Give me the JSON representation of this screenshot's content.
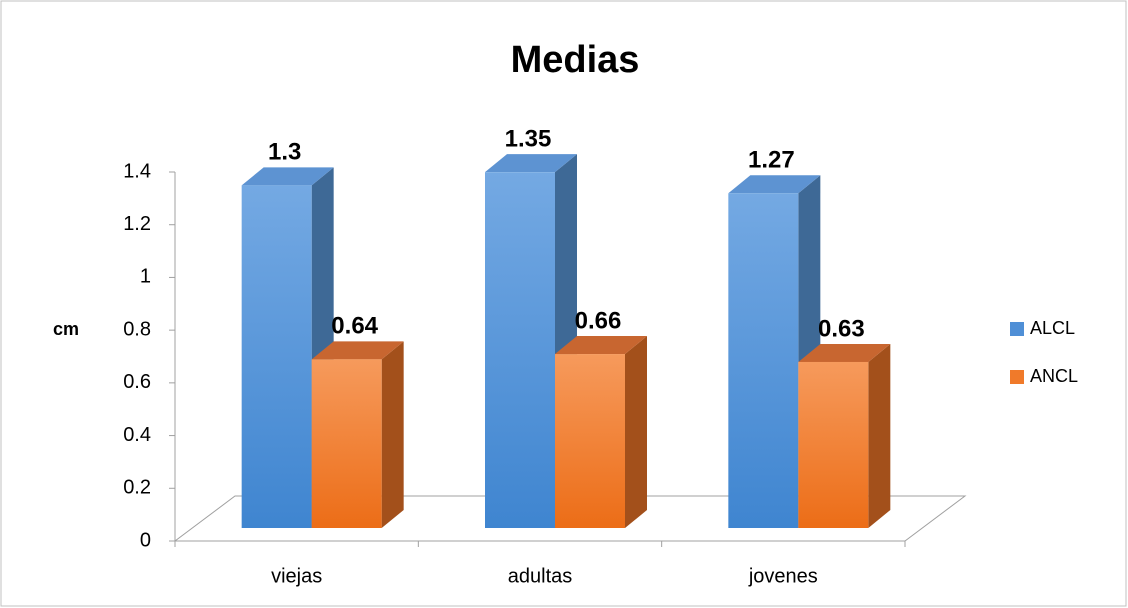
{
  "chart_data": {
    "type": "bar3d",
    "title": "Medias",
    "y_label": "cm",
    "categories": [
      "viejas",
      "adultas",
      "jovenes"
    ],
    "series": [
      {
        "name": "ALCL",
        "color": "#4f8fd6",
        "values": [
          1.3,
          1.35,
          1.27
        ]
      },
      {
        "name": "ANCL",
        "color": "#f07a2a",
        "values": [
          0.64,
          0.66,
          0.63
        ]
      }
    ],
    "ylim": [
      0,
      1.4
    ],
    "yticks": [
      0,
      0.2,
      0.4,
      0.6,
      0.8,
      1,
      1.2,
      1.4
    ],
    "legend": "right"
  }
}
